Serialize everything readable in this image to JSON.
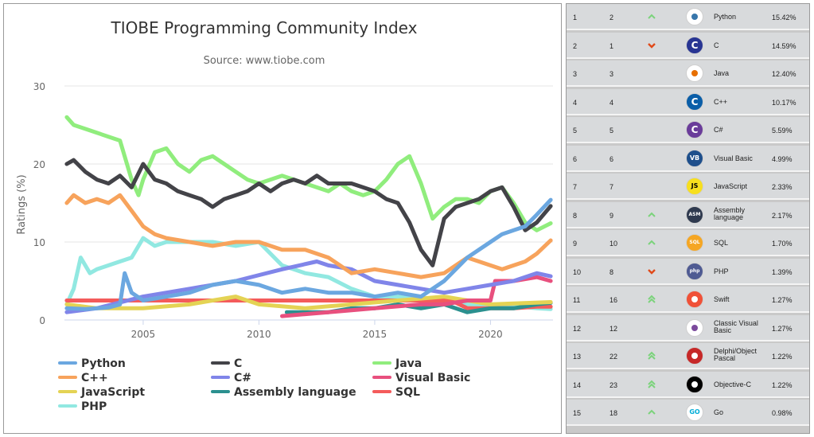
{
  "chart_data": {
    "type": "line",
    "title": "TIOBE Programming Community Index",
    "subtitle": "Source: www.tiobe.com",
    "ylabel": "Ratings (%)",
    "xlabel": "",
    "xlim": [
      2001.6,
      2022.7
    ],
    "ylim": [
      0,
      30
    ],
    "yticks": [
      "0",
      "10",
      "20",
      "30"
    ],
    "xticks": [
      "2005",
      "2010",
      "2015",
      "2020"
    ],
    "grid": "horizontal",
    "legend_position": "bottom",
    "series": [
      {
        "name": "Python",
        "color": "#6ba7e0",
        "x": [
          2001.7,
          2002.5,
          2003.5,
          2004.0,
          2004.2,
          2004.5,
          2005.0,
          2006.0,
          2007.0,
          2008.0,
          2009.0,
          2010.0,
          2011.0,
          2012.0,
          2013.0,
          2014.0,
          2015.0,
          2016.0,
          2017.0,
          2018.0,
          2019.0,
          2020.0,
          2020.5,
          2021.0,
          2021.5,
          2022.0,
          2022.6
        ],
        "y": [
          1.5,
          1.4,
          1.6,
          2.0,
          6.0,
          3.5,
          2.5,
          3.0,
          3.5,
          4.5,
          5.0,
          4.5,
          3.5,
          4.0,
          3.5,
          3.5,
          3.0,
          3.5,
          3.0,
          5.0,
          8.0,
          10.0,
          11.0,
          11.5,
          12.0,
          13.5,
          15.4
        ]
      },
      {
        "name": "C",
        "color": "#434348",
        "x": [
          2001.7,
          2002.0,
          2002.5,
          2003.0,
          2003.5,
          2004.0,
          2004.5,
          2005.0,
          2005.5,
          2006.0,
          2006.5,
          2007.0,
          2007.5,
          2008.0,
          2008.5,
          2009.0,
          2009.5,
          2010.0,
          2010.5,
          2011.0,
          2011.5,
          2012.0,
          2012.5,
          2013.0,
          2013.5,
          2014.0,
          2014.5,
          2015.0,
          2015.5,
          2016.0,
          2016.5,
          2017.0,
          2017.5,
          2018.0,
          2018.5,
          2019.0,
          2019.5,
          2020.0,
          2020.5,
          2021.0,
          2021.5,
          2022.0,
          2022.6
        ],
        "y": [
          20.0,
          20.5,
          19.0,
          18.0,
          17.5,
          18.5,
          17.0,
          20.0,
          18.0,
          17.5,
          16.5,
          16.0,
          15.5,
          14.5,
          15.5,
          16.0,
          16.5,
          17.5,
          16.5,
          17.5,
          18.0,
          17.5,
          18.5,
          17.5,
          17.5,
          17.5,
          17.0,
          16.5,
          15.5,
          15.0,
          12.5,
          9.0,
          7.0,
          13.0,
          14.5,
          15.0,
          15.5,
          16.5,
          17.0,
          14.5,
          11.5,
          12.5,
          14.6
        ]
      },
      {
        "name": "Java",
        "color": "#90ed7d",
        "x": [
          2001.7,
          2002.0,
          2002.5,
          2003.0,
          2003.5,
          2004.0,
          2004.5,
          2004.8,
          2005.0,
          2005.5,
          2006.0,
          2006.5,
          2007.0,
          2007.5,
          2008.0,
          2008.5,
          2009.0,
          2009.5,
          2010.0,
          2010.5,
          2011.0,
          2011.5,
          2012.0,
          2012.5,
          2013.0,
          2013.5,
          2014.0,
          2014.5,
          2015.0,
          2015.5,
          2016.0,
          2016.5,
          2017.0,
          2017.5,
          2018.0,
          2018.5,
          2019.0,
          2019.5,
          2020.0,
          2020.5,
          2021.0,
          2021.5,
          2022.0,
          2022.6
        ],
        "y": [
          26.0,
          25.0,
          24.5,
          24.0,
          23.5,
          23.0,
          18.0,
          16.0,
          18.0,
          21.5,
          22.0,
          20.0,
          19.0,
          20.5,
          21.0,
          20.0,
          19.0,
          18.0,
          17.5,
          18.0,
          18.5,
          18.0,
          17.5,
          17.0,
          16.5,
          17.5,
          16.5,
          16.0,
          16.5,
          18.0,
          20.0,
          21.0,
          17.5,
          13.0,
          14.5,
          15.5,
          15.5,
          15.0,
          16.5,
          17.0,
          15.0,
          12.5,
          11.5,
          12.4
        ]
      },
      {
        "name": "C++",
        "color": "#f7a35c",
        "x": [
          2001.7,
          2002.0,
          2002.5,
          2003.0,
          2003.5,
          2004.0,
          2004.5,
          2005.0,
          2005.5,
          2006.0,
          2007.0,
          2008.0,
          2009.0,
          2010.0,
          2011.0,
          2012.0,
          2013.0,
          2014.0,
          2015.0,
          2016.0,
          2017.0,
          2018.0,
          2019.0,
          2020.0,
          2020.5,
          2021.0,
          2021.5,
          2022.0,
          2022.6
        ],
        "y": [
          15.0,
          16.0,
          15.0,
          15.5,
          15.0,
          16.0,
          14.0,
          12.0,
          11.0,
          10.5,
          10.0,
          9.5,
          10.0,
          10.0,
          9.0,
          9.0,
          8.0,
          6.0,
          6.5,
          6.0,
          5.5,
          6.0,
          8.0,
          7.0,
          6.5,
          7.0,
          7.5,
          8.5,
          10.2
        ]
      },
      {
        "name": "C#",
        "color": "#8085e9",
        "x": [
          2001.7,
          2003.0,
          2005.0,
          2007.0,
          2009.0,
          2011.0,
          2012.5,
          2013.0,
          2014.0,
          2015.0,
          2016.0,
          2017.0,
          2018.0,
          2019.0,
          2020.0,
          2021.0,
          2022.0,
          2022.6
        ],
        "y": [
          1.0,
          1.5,
          3.0,
          4.0,
          5.0,
          6.5,
          7.5,
          7.0,
          6.5,
          5.0,
          4.5,
          4.0,
          3.5,
          4.0,
          4.5,
          5.0,
          6.0,
          5.6
        ]
      },
      {
        "name": "Visual Basic",
        "color": "#e8507e",
        "x": [
          2011.0,
          2013.0,
          2015.0,
          2017.0,
          2018.0,
          2019.0,
          2020.0,
          2020.2,
          2021.0,
          2022.0,
          2022.6
        ],
        "y": [
          0.5,
          1.0,
          1.5,
          2.0,
          2.0,
          2.5,
          2.5,
          5.0,
          5.0,
          5.5,
          5.0
        ]
      },
      {
        "name": "JavaScript",
        "color": "#e4d354",
        "x": [
          2001.7,
          2003.0,
          2005.0,
          2007.0,
          2009.0,
          2010.0,
          2012.0,
          2014.0,
          2016.0,
          2018.0,
          2020.0,
          2022.6
        ],
        "y": [
          2.0,
          1.5,
          1.5,
          2.0,
          3.0,
          2.0,
          1.5,
          2.0,
          2.5,
          3.0,
          2.0,
          2.3
        ]
      },
      {
        "name": "Assembly language",
        "color": "#2b908f",
        "x": [
          2011.2,
          2012.0,
          2013.0,
          2014.0,
          2015.0,
          2016.0,
          2017.0,
          2018.0,
          2019.0,
          2020.0,
          2021.0,
          2022.0,
          2022.6
        ],
        "y": [
          1.0,
          1.0,
          1.0,
          1.5,
          1.5,
          2.0,
          1.5,
          2.0,
          1.0,
          1.5,
          1.5,
          2.0,
          2.2
        ]
      },
      {
        "name": "SQL",
        "color": "#f45b5b",
        "x": [
          2001.7,
          2003.0,
          2018.3,
          2019.0,
          2020.0,
          2021.0,
          2022.0,
          2022.6
        ],
        "y": [
          2.5,
          2.5,
          2.5,
          1.5,
          1.5,
          1.5,
          1.7,
          1.7
        ]
      },
      {
        "name": "PHP",
        "color": "#91e8e1",
        "x": [
          2001.7,
          2002.0,
          2002.3,
          2002.7,
          2003.0,
          2003.5,
          2004.0,
          2004.5,
          2005.0,
          2005.5,
          2006.0,
          2007.0,
          2008.0,
          2009.0,
          2010.0,
          2011.0,
          2012.0,
          2013.0,
          2014.0,
          2015.0,
          2016.0,
          2017.0,
          2018.0,
          2019.0,
          2020.0,
          2021.0,
          2022.0,
          2022.6
        ],
        "y": [
          2.0,
          4.0,
          8.0,
          6.0,
          6.5,
          7.0,
          7.5,
          8.0,
          10.5,
          9.5,
          10.0,
          10.0,
          10.0,
          9.5,
          10.0,
          7.0,
          6.0,
          5.5,
          4.0,
          3.0,
          3.0,
          2.5,
          2.5,
          2.0,
          2.0,
          1.8,
          1.5,
          1.4
        ]
      }
    ]
  },
  "ranking": {
    "rows": [
      {
        "now": "1",
        "prev": "2",
        "change": "up",
        "logo": "python-logo",
        "logo_text": "",
        "logo_bg": "#ffffff",
        "logo_fg": "#3776ab",
        "lang": "Python",
        "rating": "15.42%"
      },
      {
        "now": "2",
        "prev": "1",
        "change": "down",
        "logo": "c-logo",
        "logo_text": "C",
        "logo_bg": "#283593",
        "logo_fg": "#ffffff",
        "lang": "C",
        "rating": "14.59%"
      },
      {
        "now": "3",
        "prev": "3",
        "change": "none",
        "logo": "java-logo",
        "logo_text": "",
        "logo_bg": "#ffffff",
        "logo_fg": "#e76f00",
        "lang": "Java",
        "rating": "12.40%"
      },
      {
        "now": "4",
        "prev": "4",
        "change": "none",
        "logo": "cpp-logo",
        "logo_text": "C",
        "logo_bg": "#0a5ea8",
        "logo_fg": "#ffffff",
        "lang": "C++",
        "rating": "10.17%"
      },
      {
        "now": "5",
        "prev": "5",
        "change": "none",
        "logo": "csharp-logo",
        "logo_text": "C",
        "logo_bg": "#6a3c9a",
        "logo_fg": "#ffffff",
        "lang": "C#",
        "rating": "5.59%"
      },
      {
        "now": "6",
        "prev": "6",
        "change": "none",
        "logo": "visual-basic-logo",
        "logo_text": "VB",
        "logo_bg": "#1e4f8c",
        "logo_fg": "#ffffff",
        "lang": "Visual Basic",
        "rating": "4.99%"
      },
      {
        "now": "7",
        "prev": "7",
        "change": "none",
        "logo": "javascript-logo",
        "logo_text": "JS",
        "logo_bg": "#f7df1e",
        "logo_fg": "#000000",
        "lang": "JavaScript",
        "rating": "2.33%"
      },
      {
        "now": "8",
        "prev": "9",
        "change": "up",
        "logo": "assembly-logo",
        "logo_text": "ASM",
        "logo_bg": "#2f3a4f",
        "logo_fg": "#ffffff",
        "lang": "Assembly language",
        "rating": "2.17%"
      },
      {
        "now": "9",
        "prev": "10",
        "change": "up",
        "logo": "sql-logo",
        "logo_text": "SQL",
        "logo_bg": "#f5a623",
        "logo_fg": "#ffffff",
        "lang": "SQL",
        "rating": "1.70%"
      },
      {
        "now": "10",
        "prev": "8",
        "change": "down",
        "logo": "php-logo",
        "logo_text": "php",
        "logo_bg": "#4f5b93",
        "logo_fg": "#ffffff",
        "lang": "PHP",
        "rating": "1.39%"
      },
      {
        "now": "11",
        "prev": "16",
        "change": "up2",
        "logo": "swift-logo",
        "logo_text": "",
        "logo_bg": "#f05138",
        "logo_fg": "#ffffff",
        "lang": "Swift",
        "rating": "1.27%"
      },
      {
        "now": "12",
        "prev": "12",
        "change": "none",
        "logo": "classic-visual-basic-logo",
        "logo_text": "",
        "logo_bg": "#ffffff",
        "logo_fg": "#7b4a9c",
        "lang": "Classic Visual Basic",
        "rating": "1.27%"
      },
      {
        "now": "13",
        "prev": "22",
        "change": "up2",
        "logo": "delphi-logo",
        "logo_text": "",
        "logo_bg": "#c62828",
        "logo_fg": "#ffffff",
        "lang": "Delphi/Object Pascal",
        "rating": "1.22%"
      },
      {
        "now": "14",
        "prev": "23",
        "change": "up2",
        "logo": "objective-c-logo",
        "logo_text": "",
        "logo_bg": "#000000",
        "logo_fg": "#ffffff",
        "lang": "Objective-C",
        "rating": "1.22%"
      },
      {
        "now": "15",
        "prev": "18",
        "change": "up",
        "logo": "go-logo",
        "logo_text": "GO",
        "logo_bg": "#ffffff",
        "logo_fg": "#00add8",
        "lang": "Go",
        "rating": "0.98%"
      }
    ]
  },
  "colors": {
    "up": "#7bd37b",
    "down": "#e04a1a",
    "grid": "#e6e6e6"
  }
}
